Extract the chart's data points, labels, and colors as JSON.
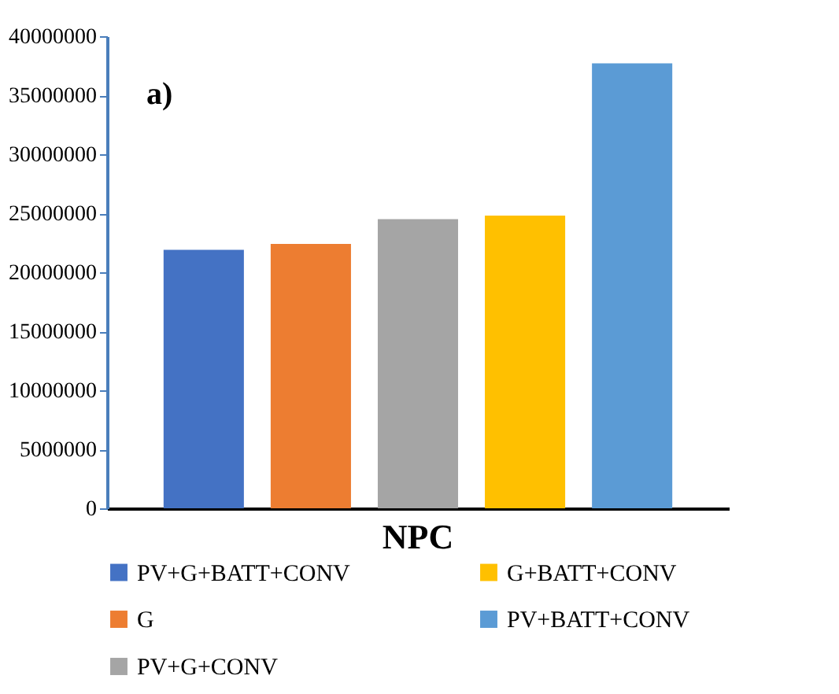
{
  "chart_data": {
    "type": "bar",
    "categories": [
      "NPC"
    ],
    "annotations": [
      "a)"
    ],
    "series": [
      {
        "name": "PV+G+BATT+CONV",
        "color": "#4472c4",
        "values": [
          21900000
        ]
      },
      {
        "name": "G",
        "color": "#ed7d31",
        "values": [
          22400000
        ]
      },
      {
        "name": "PV+G+CONV",
        "color": "#a5a5a5",
        "values": [
          24500000
        ]
      },
      {
        "name": "G+BATT+CONV",
        "color": "#ffc000",
        "values": [
          24800000
        ]
      },
      {
        "name": "PV+BATT+CONV",
        "color": "#5b9bd5",
        "values": [
          37700000
        ]
      }
    ],
    "ylim": [
      0,
      40000000
    ],
    "yticks": [
      0,
      5000000,
      10000000,
      15000000,
      20000000,
      25000000,
      30000000,
      35000000,
      40000000
    ],
    "grid": false,
    "legend": "bottom"
  }
}
